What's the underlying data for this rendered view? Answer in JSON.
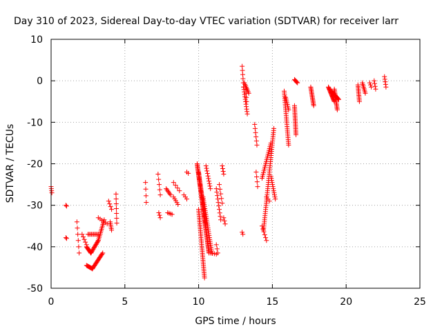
{
  "chart_data": {
    "type": "scatter",
    "title": "Day 310 of 2023, Sidereal Day-to-day VTEC variation (SDTVAR) for receiver larr",
    "xlabel": "GPS time / hours",
    "ylabel": "SDTVAR / TECUs",
    "xlim": [
      0,
      25
    ],
    "ylim": [
      -50,
      10
    ],
    "xticks": [
      0,
      5,
      10,
      15,
      20,
      25
    ],
    "yticks": [
      -50,
      -40,
      -30,
      -20,
      -10,
      0,
      10
    ],
    "grid": true,
    "marker": "plus",
    "color": "#ff0000",
    "series": [
      {
        "name": "SDTVAR",
        "segments": [
          {
            "x0": 0.0,
            "y0": -25.5,
            "x1": 0.05,
            "y1": -27.0,
            "n": 4
          },
          {
            "x0": 1.0,
            "y0": -30.0,
            "x1": 1.05,
            "y1": -30.2,
            "n": 2
          },
          {
            "x0": 1.0,
            "y0": -37.8,
            "x1": 1.05,
            "y1": -38.0,
            "n": 2
          },
          {
            "x0": 1.75,
            "y0": -34.0,
            "x1": 1.9,
            "y1": -41.5,
            "n": 6
          },
          {
            "x0": 2.1,
            "y0": -37.0,
            "x1": 2.4,
            "y1": -39.5,
            "n": 5
          },
          {
            "x0": 2.4,
            "y0": -40.0,
            "x1": 2.7,
            "y1": -41.5,
            "n": 10
          },
          {
            "x0": 2.7,
            "y0": -41.5,
            "x1": 3.2,
            "y1": -38.5,
            "n": 14
          },
          {
            "x0": 3.2,
            "y0": -38.5,
            "x1": 3.6,
            "y1": -33.5,
            "n": 14
          },
          {
            "x0": 2.5,
            "y0": -37.0,
            "x1": 3.2,
            "y1": -37.0,
            "n": 10
          },
          {
            "x0": 2.4,
            "y0": -44.5,
            "x1": 2.8,
            "y1": -45.3,
            "n": 10
          },
          {
            "x0": 2.8,
            "y0": -45.3,
            "x1": 3.5,
            "y1": -41.5,
            "n": 18
          },
          {
            "x0": 3.2,
            "y0": -33.0,
            "x1": 3.8,
            "y1": -34.5,
            "n": 6
          },
          {
            "x0": 4.0,
            "y0": -34.0,
            "x1": 4.1,
            "y1": -36.0,
            "n": 6
          },
          {
            "x0": 3.9,
            "y0": -29.0,
            "x1": 4.1,
            "y1": -31.0,
            "n": 4
          },
          {
            "x0": 4.4,
            "y0": -27.3,
            "x1": 4.45,
            "y1": -34.3,
            "n": 7
          },
          {
            "x0": 6.4,
            "y0": -24.5,
            "x1": 6.45,
            "y1": -29.3,
            "n": 4
          },
          {
            "x0": 7.25,
            "y0": -22.5,
            "x1": 7.4,
            "y1": -27.5,
            "n": 5
          },
          {
            "x0": 7.3,
            "y0": -31.8,
            "x1": 7.4,
            "y1": -33.0,
            "n": 3
          },
          {
            "x0": 7.8,
            "y0": -26.0,
            "x1": 8.1,
            "y1": -27.5,
            "n": 6
          },
          {
            "x0": 7.9,
            "y0": -31.8,
            "x1": 8.2,
            "y1": -32.2,
            "n": 4
          },
          {
            "x0": 8.3,
            "y0": -28.0,
            "x1": 8.6,
            "y1": -29.8,
            "n": 5
          },
          {
            "x0": 8.3,
            "y0": -24.5,
            "x1": 8.7,
            "y1": -26.5,
            "n": 4
          },
          {
            "x0": 9.0,
            "y0": -27.5,
            "x1": 9.2,
            "y1": -28.5,
            "n": 3
          },
          {
            "x0": 9.2,
            "y0": -22.0,
            "x1": 9.3,
            "y1": -22.3,
            "n": 2
          },
          {
            "x0": 9.9,
            "y0": -20.0,
            "x1": 10.7,
            "y1": -41.5,
            "n": 80
          },
          {
            "x0": 10.0,
            "y0": -22.0,
            "x1": 10.5,
            "y1": -35.0,
            "n": 40
          },
          {
            "x0": 10.0,
            "y0": -31.0,
            "x1": 10.4,
            "y1": -47.5,
            "n": 40
          },
          {
            "x0": 10.3,
            "y0": -28.0,
            "x1": 10.9,
            "y1": -41.5,
            "n": 30
          },
          {
            "x0": 10.8,
            "y0": -41.5,
            "x1": 11.2,
            "y1": -41.8,
            "n": 4
          },
          {
            "x0": 10.5,
            "y0": -20.5,
            "x1": 10.8,
            "y1": -26.0,
            "n": 10
          },
          {
            "x0": 11.2,
            "y0": -26.0,
            "x1": 11.5,
            "y1": -33.5,
            "n": 10
          },
          {
            "x0": 11.2,
            "y0": -39.5,
            "x1": 11.3,
            "y1": -41.5,
            "n": 3
          },
          {
            "x0": 11.4,
            "y0": -25.0,
            "x1": 11.6,
            "y1": -29.5,
            "n": 5
          },
          {
            "x0": 11.6,
            "y0": -20.5,
            "x1": 11.7,
            "y1": -22.5,
            "n": 4
          },
          {
            "x0": 11.7,
            "y0": -33.0,
            "x1": 11.8,
            "y1": -34.5,
            "n": 3
          },
          {
            "x0": 12.95,
            "y0": -36.5,
            "x1": 13.0,
            "y1": -37.0,
            "n": 2
          },
          {
            "x0": 12.95,
            "y0": 3.5,
            "x1": 13.05,
            "y1": -1.5,
            "n": 6
          },
          {
            "x0": 13.05,
            "y0": -1.5,
            "x1": 13.3,
            "y1": -8.0,
            "n": 12
          },
          {
            "x0": 13.1,
            "y0": -0.5,
            "x1": 13.4,
            "y1": -3.0,
            "n": 8
          },
          {
            "x0": 13.2,
            "y0": -2.0,
            "x1": 13.25,
            "y1": -5.0,
            "n": 4
          },
          {
            "x0": 13.8,
            "y0": -10.5,
            "x1": 13.95,
            "y1": -15.5,
            "n": 6
          },
          {
            "x0": 13.9,
            "y0": -22.0,
            "x1": 14.0,
            "y1": -25.5,
            "n": 4
          },
          {
            "x0": 14.3,
            "y0": -35.0,
            "x1": 14.6,
            "y1": -38.5,
            "n": 6
          },
          {
            "x0": 14.4,
            "y0": -36.0,
            "x1": 15.1,
            "y1": -11.5,
            "n": 50
          },
          {
            "x0": 14.3,
            "y0": -23.5,
            "x1": 14.9,
            "y1": -15.0,
            "n": 20
          },
          {
            "x0": 14.9,
            "y0": -23.0,
            "x1": 15.2,
            "y1": -28.5,
            "n": 12
          },
          {
            "x0": 14.6,
            "y0": -28.0,
            "x1": 14.8,
            "y1": -29.0,
            "n": 3
          },
          {
            "x0": 15.8,
            "y0": -2.5,
            "x1": 16.1,
            "y1": -15.5,
            "n": 30
          },
          {
            "x0": 15.9,
            "y0": -4.0,
            "x1": 16.1,
            "y1": -7.0,
            "n": 8
          },
          {
            "x0": 16.5,
            "y0": -6.0,
            "x1": 16.6,
            "y1": -13.0,
            "n": 20
          },
          {
            "x0": 16.5,
            "y0": 0.3,
            "x1": 16.7,
            "y1": -0.5,
            "n": 6
          },
          {
            "x0": 17.6,
            "y0": -1.5,
            "x1": 17.8,
            "y1": -6.0,
            "n": 16
          },
          {
            "x0": 18.8,
            "y0": -1.5,
            "x1": 19.2,
            "y1": -5.0,
            "n": 20
          },
          {
            "x0": 19.0,
            "y0": -2.5,
            "x1": 19.5,
            "y1": -4.5,
            "n": 14
          },
          {
            "x0": 19.2,
            "y0": -2.0,
            "x1": 19.4,
            "y1": -7.0,
            "n": 16
          },
          {
            "x0": 20.8,
            "y0": -1.0,
            "x1": 20.9,
            "y1": -5.0,
            "n": 12
          },
          {
            "x0": 21.1,
            "y0": -0.5,
            "x1": 21.3,
            "y1": -3.0,
            "n": 8
          },
          {
            "x0": 21.6,
            "y0": -0.5,
            "x1": 21.7,
            "y1": -1.5,
            "n": 3
          },
          {
            "x0": 21.9,
            "y0": 0.0,
            "x1": 22.0,
            "y1": -2.0,
            "n": 4
          },
          {
            "x0": 22.6,
            "y0": 1.0,
            "x1": 22.7,
            "y1": -1.5,
            "n": 5
          }
        ]
      }
    ]
  }
}
